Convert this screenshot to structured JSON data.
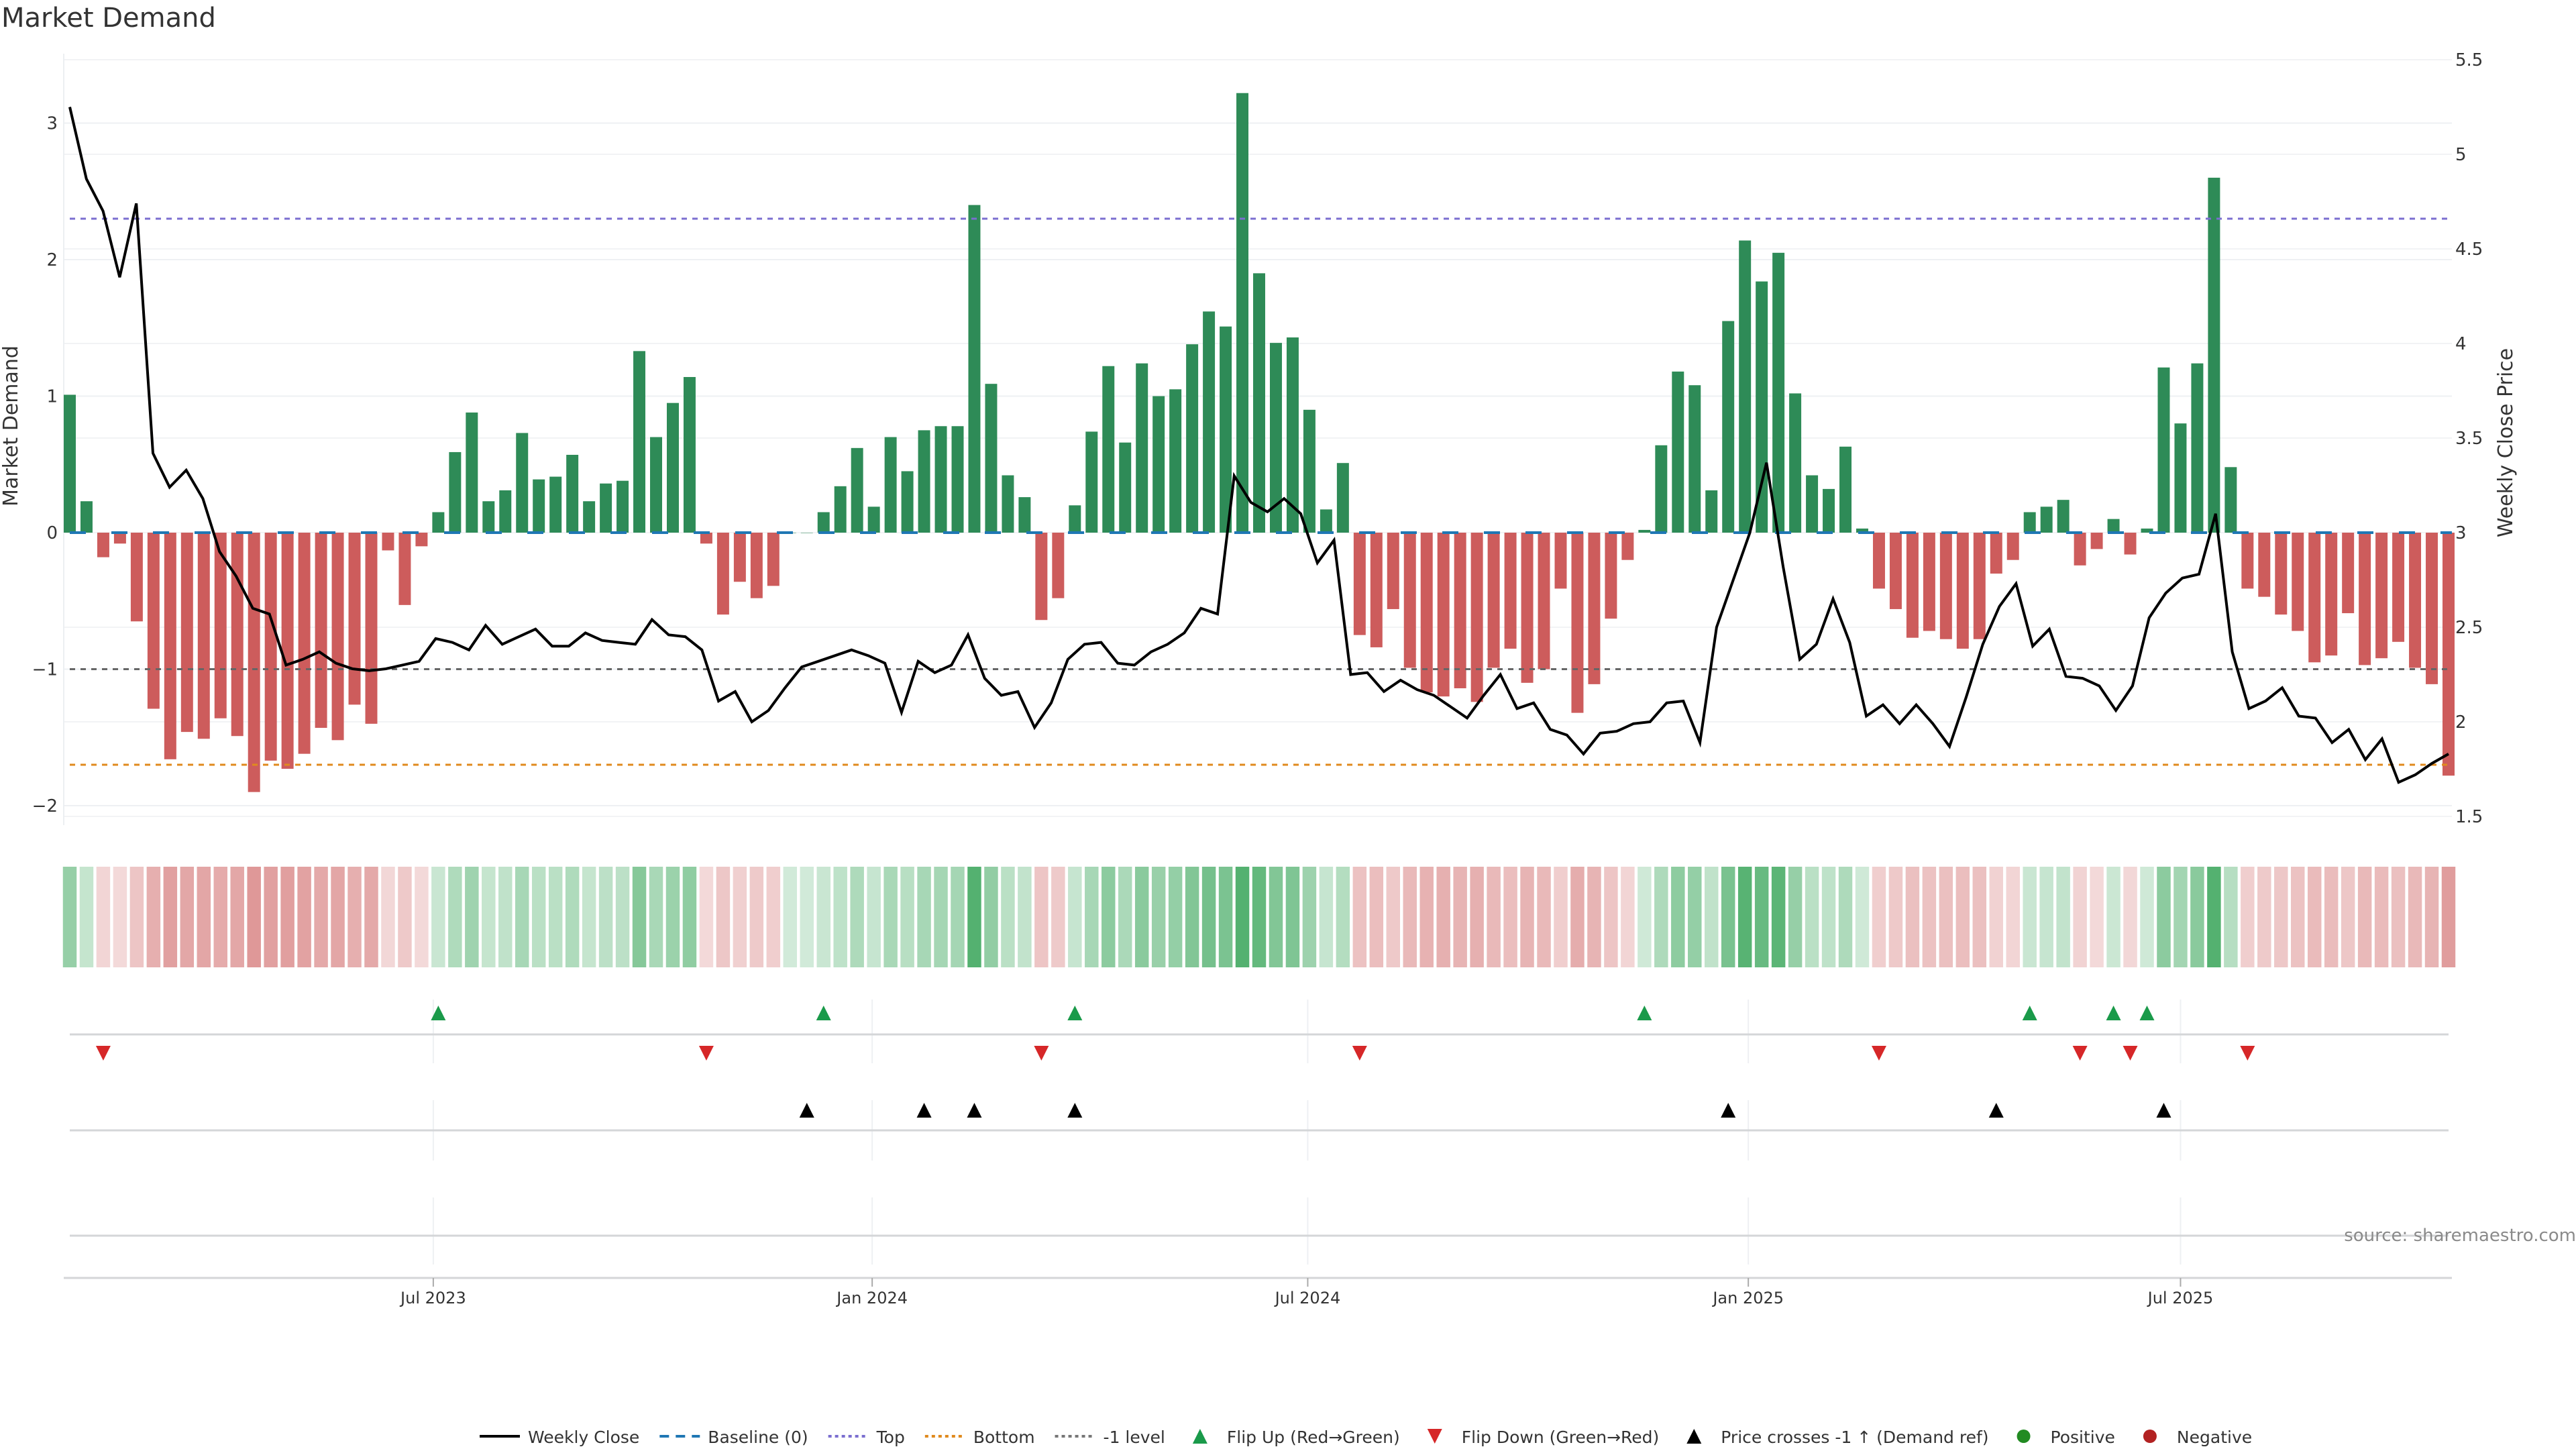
{
  "chart_data": {
    "type": "bar",
    "title": "Market Demand",
    "ylabel": "Market Demand",
    "y2label": "Weekly Close Price",
    "ylim": [
      -2.2,
      3.45
    ],
    "y2lim": [
      1.5,
      5.5
    ],
    "yticks": [
      "3",
      "2",
      "1",
      "0",
      "−1",
      "−2"
    ],
    "yticks_values": [
      3,
      2,
      1,
      0,
      -1,
      -2
    ],
    "y2ticks": [
      "5.5",
      "5",
      "4.5",
      "4",
      "3.5",
      "3",
      "2.5",
      "2",
      "1.5"
    ],
    "y2ticks_values": [
      5.5,
      5,
      4.5,
      4,
      3.5,
      3,
      2.5,
      2,
      1.5
    ],
    "xticks": [
      "Jul 2023",
      "Jan 2024",
      "Jul 2024",
      "Jan 2025",
      "Jul 2025"
    ],
    "xticks_index": [
      21.7,
      47.9,
      73.9,
      100.2,
      126.0
    ],
    "reference_lines": {
      "top": 2.3,
      "bottom": -1.7,
      "minus_one": -1,
      "baseline": 0
    },
    "grid": true,
    "legend_position": "bottom-center",
    "demand": [
      1.01,
      0.23,
      -0.18,
      -0.08,
      -0.65,
      -1.29,
      -1.66,
      -1.46,
      -1.51,
      -1.36,
      -1.49,
      -1.9,
      -1.67,
      -1.73,
      -1.62,
      -1.43,
      -1.52,
      -1.26,
      -1.4,
      -0.13,
      -0.53,
      -0.1,
      0.15,
      0.59,
      0.88,
      0.23,
      0.31,
      0.73,
      0.39,
      0.41,
      0.57,
      0.23,
      0.36,
      0.38,
      1.33,
      0.7,
      0.95,
      1.14,
      -0.08,
      -0.6,
      -0.36,
      -0.48,
      -0.39,
      0.0,
      0.0,
      0.15,
      0.34,
      0.62,
      0.19,
      0.7,
      0.45,
      0.75,
      0.78,
      0.78,
      2.4,
      1.09,
      0.42,
      0.26,
      -0.64,
      -0.48,
      0.2,
      0.74,
      1.22,
      0.66,
      1.24,
      1.0,
      1.05,
      1.38,
      1.62,
      1.51,
      3.22,
      1.9,
      1.39,
      1.43,
      0.9,
      0.17,
      0.51,
      -0.75,
      -0.84,
      -0.56,
      -0.99,
      -1.17,
      -1.2,
      -1.14,
      -1.24,
      -0.99,
      -0.85,
      -1.1,
      -1.0,
      -0.41,
      -1.32,
      -1.11,
      -0.63,
      -0.2,
      0.02,
      0.64,
      1.18,
      1.08,
      0.31,
      1.55,
      2.14,
      1.84,
      2.05,
      1.02,
      0.42,
      0.32,
      0.63,
      0.03,
      -0.41,
      -0.56,
      -0.77,
      -0.72,
      -0.78,
      -0.85,
      -0.78,
      -0.3,
      -0.2,
      0.15,
      0.19,
      0.24,
      -0.24,
      -0.12,
      0.1,
      -0.16,
      0.03,
      1.21,
      0.8,
      1.24,
      2.6,
      0.48,
      -0.41,
      -0.47,
      -0.6,
      -0.72,
      -0.95,
      -0.9,
      -0.59,
      -0.97,
      -0.92,
      -0.8,
      -0.99,
      -1.11,
      -1.78
    ],
    "weekly_close": [
      5.25,
      4.87,
      4.7,
      4.35,
      4.74,
      3.42,
      3.24,
      3.33,
      3.18,
      2.9,
      2.77,
      2.6,
      2.57,
      2.3,
      2.33,
      2.37,
      2.31,
      2.28,
      2.27,
      2.28,
      2.3,
      2.32,
      2.44,
      2.42,
      2.38,
      2.51,
      2.41,
      2.45,
      2.49,
      2.4,
      2.4,
      2.47,
      2.43,
      2.42,
      2.41,
      2.54,
      2.46,
      2.45,
      2.38,
      2.11,
      2.16,
      2.0,
      2.06,
      2.18,
      2.29,
      2.32,
      2.35,
      2.38,
      2.35,
      2.31,
      2.05,
      2.32,
      2.26,
      2.3,
      2.46,
      2.23,
      2.14,
      2.16,
      1.97,
      2.1,
      2.33,
      2.41,
      2.42,
      2.31,
      2.3,
      2.37,
      2.41,
      2.47,
      2.6,
      2.57,
      3.3,
      3.16,
      3.11,
      3.18,
      3.1,
      2.84,
      2.96,
      2.25,
      2.26,
      2.16,
      2.22,
      2.17,
      2.14,
      2.08,
      2.02,
      2.14,
      2.25,
      2.07,
      2.1,
      1.96,
      1.93,
      1.83,
      1.94,
      1.95,
      1.99,
      2.0,
      2.1,
      2.11,
      1.89,
      2.5,
      2.75,
      3.0,
      3.37,
      2.82,
      2.33,
      2.41,
      2.65,
      2.42,
      2.03,
      2.09,
      1.99,
      2.09,
      1.99,
      1.87,
      2.13,
      2.41,
      2.61,
      2.73,
      2.4,
      2.49,
      2.24,
      2.23,
      2.19,
      2.06,
      2.19,
      2.55,
      2.68,
      2.76,
      2.78,
      3.1,
      2.37,
      2.07,
      2.11,
      2.18,
      2.03,
      2.02,
      1.89,
      1.96,
      1.8,
      1.91,
      1.68,
      1.72,
      1.78,
      1.83
    ],
    "flip_up_index": [
      22,
      45,
      60,
      94,
      117,
      122,
      124
    ],
    "flip_down_index": [
      2,
      38,
      58,
      77,
      108,
      120,
      123,
      130
    ],
    "price_cross_index": [
      44,
      51,
      54,
      60,
      99,
      115,
      125
    ],
    "colors": {
      "positive": "#2e8b57",
      "negative": "#cd5c5c",
      "price": "#000000",
      "baseline": "#1f77b4",
      "top": "#7b6fd0",
      "bottom": "#e08a1e",
      "minus_one": "#666666",
      "flip_up": "#1a9a4a",
      "flip_down": "#d62728",
      "cross": "#000000",
      "legend_positive": "#228b22",
      "legend_negative": "#b22222"
    },
    "legend": [
      {
        "key": "weekly_close",
        "label": "Weekly Close",
        "symbol": "line-solid",
        "color": "#000000"
      },
      {
        "key": "baseline",
        "label": "Baseline (0)",
        "symbol": "line-dash",
        "color": "#1f77b4"
      },
      {
        "key": "top",
        "label": "Top",
        "symbol": "line-dot",
        "color": "#7b6fd0"
      },
      {
        "key": "bottom",
        "label": "Bottom",
        "symbol": "line-dot",
        "color": "#e08a1e"
      },
      {
        "key": "minus_one",
        "label": "-1 level",
        "symbol": "line-dot",
        "color": "#777777"
      },
      {
        "key": "flip_up",
        "label": "Flip Up (Red→Green)",
        "symbol": "triangle-up",
        "color": "#1a9a4a"
      },
      {
        "key": "flip_down",
        "label": "Flip Down (Green→Red)",
        "symbol": "triangle-down",
        "color": "#d62728"
      },
      {
        "key": "cross",
        "label": "Price crosses -1 ↑ (Demand ref)",
        "symbol": "triangle-up",
        "color": "#000000"
      },
      {
        "key": "positive",
        "label": "Positive",
        "symbol": "circle",
        "color": "#228b22"
      },
      {
        "key": "negative",
        "label": "Negative",
        "symbol": "circle",
        "color": "#b22222"
      }
    ],
    "source": "source: sharemaestro.com"
  }
}
